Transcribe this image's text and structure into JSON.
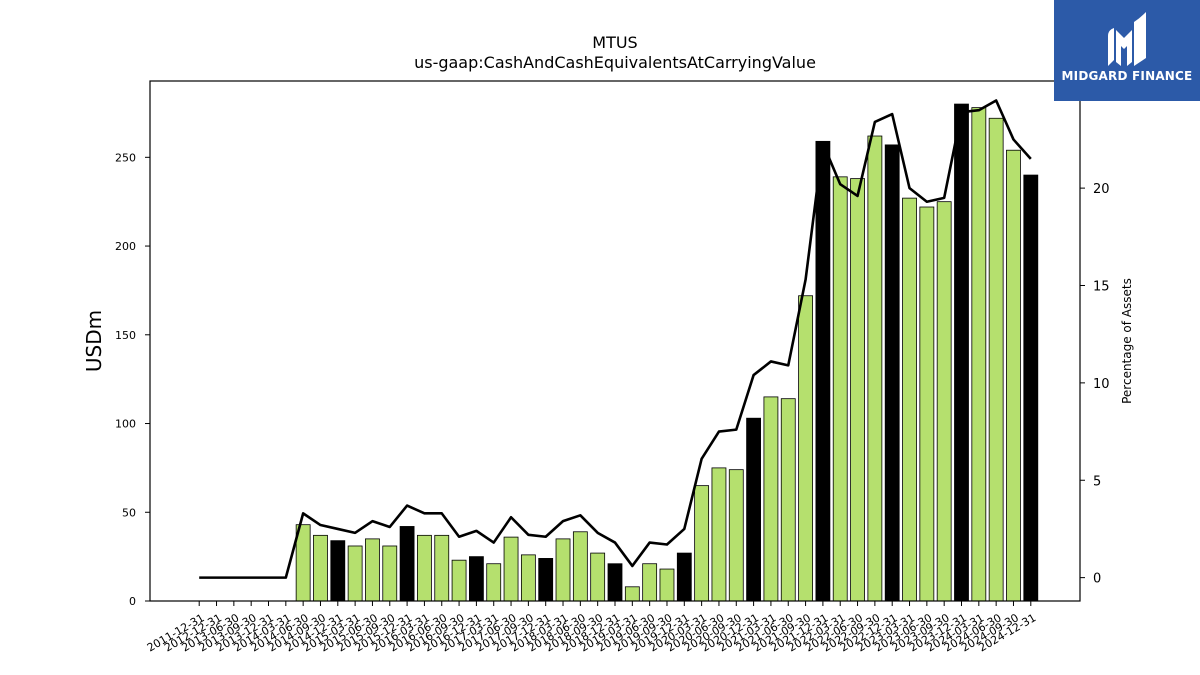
{
  "brand": {
    "name": "MIDGARD FINANCE",
    "bg_color": "#2c5aa8"
  },
  "chart_data": {
    "type": "bar",
    "title": "MTUS",
    "subtitle": "us-gaap:CashAndCashEquivalentsAtCarryingValue",
    "ylabel": "USDm",
    "y2label": "Percentage of Assets",
    "ylim": [
      0,
      293
    ],
    "y2lim": [
      -1.2,
      25.5
    ],
    "yticks": [
      0,
      50,
      100,
      150,
      200,
      250
    ],
    "y2ticks": [
      0,
      5,
      10,
      15,
      20
    ],
    "grid": false,
    "colors": {
      "quarter": "#b5e06e",
      "year_end": "#000000",
      "line": "#000000"
    },
    "categories": [
      "2011-12-31",
      "2012-12-31",
      "2013-06-30",
      "2013-09-30",
      "2013-12-31",
      "2014-03-31",
      "2014-06-30",
      "2014-09-30",
      "2014-12-31",
      "2015-03-31",
      "2015-06-30",
      "2015-09-30",
      "2015-12-31",
      "2016-03-31",
      "2016-06-30",
      "2016-09-30",
      "2016-12-31",
      "2017-03-31",
      "2017-06-30",
      "2017-09-30",
      "2017-12-31",
      "2018-03-31",
      "2018-06-30",
      "2018-09-30",
      "2018-12-31",
      "2019-03-31",
      "2019-06-30",
      "2019-09-30",
      "2019-12-31",
      "2020-03-31",
      "2020-06-30",
      "2020-09-30",
      "2020-12-31",
      "2021-03-31",
      "2021-06-30",
      "2021-09-30",
      "2021-12-31",
      "2022-03-31",
      "2022-06-30",
      "2022-09-30",
      "2022-12-31",
      "2023-03-31",
      "2023-06-30",
      "2023-09-30",
      "2023-12-31",
      "2024-03-31",
      "2024-06-30",
      "2024-09-30",
      "2024-12-31"
    ],
    "year_end": [
      false,
      false,
      false,
      false,
      false,
      false,
      false,
      false,
      true,
      false,
      false,
      false,
      true,
      false,
      false,
      false,
      true,
      false,
      false,
      false,
      true,
      false,
      false,
      false,
      true,
      false,
      false,
      false,
      true,
      false,
      false,
      false,
      true,
      false,
      false,
      false,
      true,
      false,
      false,
      false,
      true,
      false,
      false,
      false,
      true,
      false,
      false,
      false,
      true
    ],
    "values": [
      0,
      0,
      0,
      0,
      0,
      0,
      43,
      37,
      34,
      31,
      35,
      31,
      42,
      37,
      37,
      23,
      25,
      21,
      36,
      26,
      24,
      35,
      39,
      27,
      21,
      8,
      21,
      18,
      27,
      65,
      75,
      74,
      103,
      115,
      114,
      172,
      259,
      239,
      238,
      262,
      257,
      227,
      222,
      225,
      280,
      278,
      272,
      254,
      240
    ],
    "pct_of_assets": [
      0,
      0,
      0,
      0,
      0,
      0,
      3.3,
      2.7,
      2.5,
      2.3,
      2.9,
      2.6,
      3.7,
      3.3,
      3.3,
      2.1,
      2.4,
      1.8,
      3.1,
      2.2,
      2.1,
      2.9,
      3.2,
      2.3,
      1.8,
      0.6,
      1.8,
      1.7,
      2.5,
      6.1,
      7.5,
      7.6,
      10.4,
      11.1,
      10.9,
      15.3,
      22.3,
      20.2,
      19.6,
      23.4,
      23.8,
      20.0,
      19.3,
      19.5,
      23.9,
      24.0,
      24.5,
      22.5,
      21.5
    ]
  }
}
